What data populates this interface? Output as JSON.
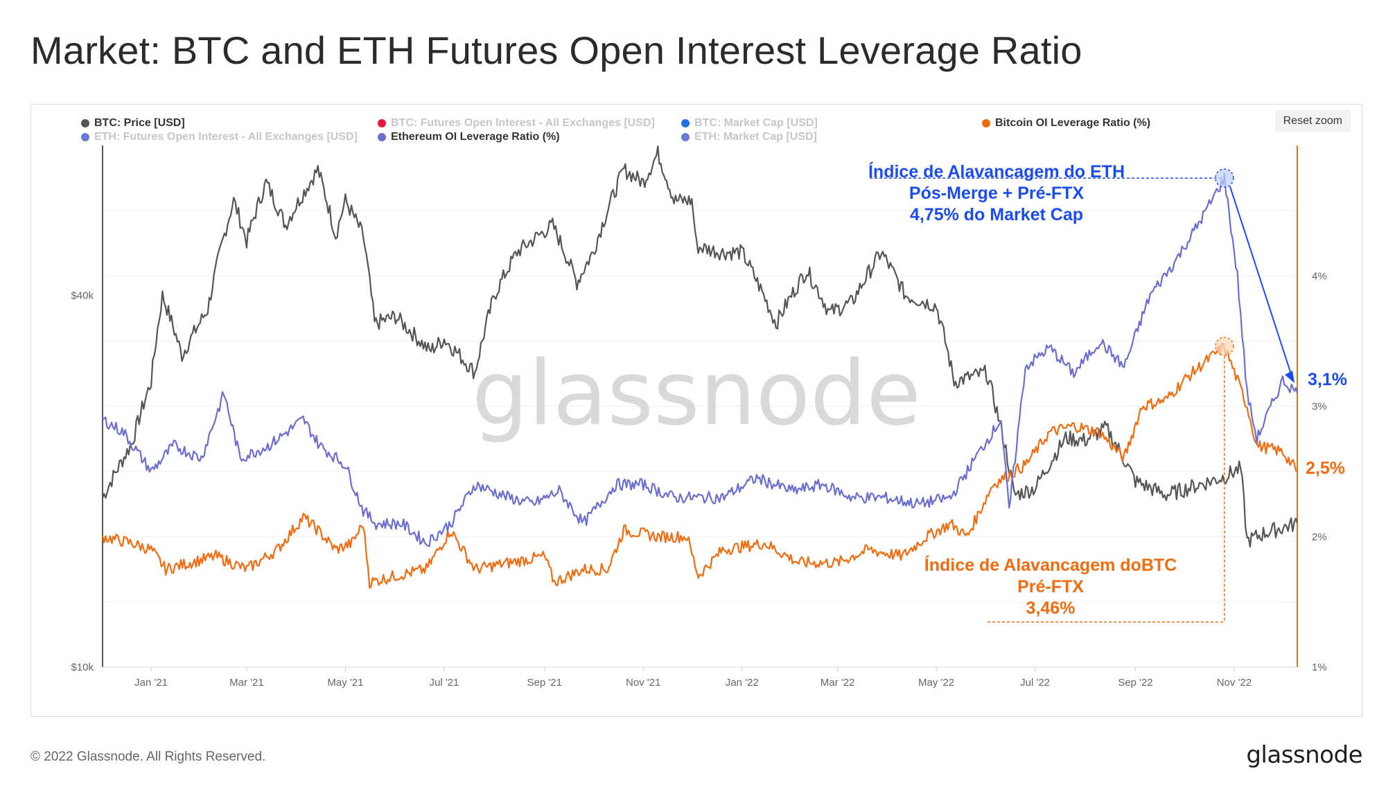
{
  "page": {
    "title": "Market: BTC and ETH Futures Open Interest Leverage Ratio",
    "footer": "© 2022 Glassnode. All Rights Reserved.",
    "logo": "glassnode",
    "watermark": "glassnode",
    "reset_zoom": "Reset zoom"
  },
  "legend": [
    {
      "label": "BTC: Price [USD]",
      "color": "#555555",
      "active": true
    },
    {
      "label": "BTC: Futures Open Interest - All Exchanges [USD]",
      "color": "#e8173c",
      "active": false
    },
    {
      "label": "BTC: Market Cap [USD]",
      "color": "#1f6fe5",
      "active": false
    },
    {
      "label": "Bitcoin OI Leverage Ratio (%)",
      "color": "#f26b0f",
      "active": true
    },
    {
      "label": "ETH: Futures Open Interest - All Exchanges [USD]",
      "color": "#6a78d8",
      "active": false
    },
    {
      "label": "Ethereum OI Leverage Ratio (%)",
      "color": "#6a6ed2",
      "active": true
    },
    {
      "label": "ETH: Market Cap [USD]",
      "color": "#6a78d8",
      "active": false
    }
  ],
  "annotations": {
    "eth_line1": "Índice de Alavancagem do ETH",
    "eth_line2": "Pós-Merge + Pré-FTX",
    "eth_line3": "4,75% do Market Cap",
    "eth_current": "3,1%",
    "btc_line1": "Índice de Alavancagem doBTC",
    "btc_line2": "Pré-FTX",
    "btc_line3": "3,46%",
    "btc_current": "2,5%"
  },
  "chart_data": {
    "type": "line",
    "x_ticks": [
      "Jan '21",
      "Mar '21",
      "May '21",
      "Jul '21",
      "Sep '21",
      "Nov '21",
      "Jan '22",
      "Mar '22",
      "May '22",
      "Jul '22",
      "Sep '22",
      "Nov '22"
    ],
    "y_left": {
      "ticks": [
        "$10k",
        "$40k"
      ],
      "scale": "log"
    },
    "y_right": {
      "ticks": [
        "1%",
        "2%",
        "3%",
        "4%"
      ]
    },
    "grid": true,
    "series": [
      {
        "name": "BTC: Price [USD]",
        "axis": "left",
        "color": "#555555",
        "x": [
          "2020-12-02",
          "2020-12-20",
          "2021-01-01",
          "2021-01-08",
          "2021-01-20",
          "2021-02-05",
          "2021-02-21",
          "2021-03-01",
          "2021-03-13",
          "2021-03-25",
          "2021-04-14",
          "2021-04-25",
          "2021-05-01",
          "2021-05-12",
          "2021-05-19",
          "2021-06-01",
          "2021-06-22",
          "2021-07-01",
          "2021-07-20",
          "2021-08-01",
          "2021-08-15",
          "2021-09-06",
          "2021-09-21",
          "2021-10-01",
          "2021-10-20",
          "2021-11-01",
          "2021-11-10",
          "2021-11-20",
          "2021-12-01",
          "2021-12-04",
          "2021-12-20",
          "2022-01-01",
          "2022-01-22",
          "2022-02-10",
          "2022-02-24",
          "2022-03-10",
          "2022-03-28",
          "2022-04-12",
          "2022-05-01",
          "2022-05-12",
          "2022-06-01",
          "2022-06-13",
          "2022-06-18",
          "2022-07-01",
          "2022-07-20",
          "2022-08-01",
          "2022-08-14",
          "2022-09-01",
          "2022-09-20",
          "2022-10-01",
          "2022-10-25",
          "2022-11-05",
          "2022-11-09",
          "2022-11-20",
          "2022-12-10"
        ],
        "values": [
          18800,
          23000,
          29000,
          40000,
          32000,
          38000,
          57000,
          49000,
          61000,
          52000,
          64000,
          50000,
          57000,
          50000,
          36000,
          37000,
          32500,
          34000,
          30000,
          40000,
          47000,
          52000,
          42000,
          47000,
          64000,
          61000,
          68000,
          57000,
          57000,
          48000,
          47000,
          47000,
          36000,
          44000,
          37500,
          39000,
          47000,
          40000,
          38500,
          29000,
          30000,
          22500,
          19000,
          19500,
          23500,
          23300,
          24400,
          20000,
          19000,
          19400,
          20300,
          21000,
          16000,
          16500,
          17100
        ]
      },
      {
        "name": "Bitcoin OI Leverage Ratio (%)",
        "axis": "right",
        "color": "#f26b0f",
        "x": [
          "2020-12-02",
          "2020-12-20",
          "2021-01-01",
          "2021-01-10",
          "2021-01-25",
          "2021-02-10",
          "2021-03-01",
          "2021-03-20",
          "2021-04-05",
          "2021-04-14",
          "2021-04-25",
          "2021-05-05",
          "2021-05-12",
          "2021-05-16",
          "2021-06-01",
          "2021-06-20",
          "2021-07-05",
          "2021-07-20",
          "2021-08-10",
          "2021-09-01",
          "2021-09-07",
          "2021-09-25",
          "2021-10-10",
          "2021-10-20",
          "2021-11-10",
          "2021-11-28",
          "2021-12-05",
          "2021-12-20",
          "2022-01-15",
          "2022-02-05",
          "2022-03-01",
          "2022-03-20",
          "2022-04-10",
          "2022-04-25",
          "2022-05-10",
          "2022-05-20",
          "2022-06-05",
          "2022-06-25",
          "2022-07-10",
          "2022-07-25",
          "2022-08-10",
          "2022-08-25",
          "2022-09-05",
          "2022-09-20",
          "2022-10-01",
          "2022-10-15",
          "2022-10-26",
          "2022-11-03",
          "2022-11-09",
          "2022-11-15",
          "2022-12-01",
          "2022-12-10"
        ],
        "values": [
          2.0,
          1.95,
          1.9,
          1.75,
          1.8,
          1.85,
          1.75,
          1.9,
          2.15,
          2.05,
          1.9,
          1.95,
          2.1,
          1.65,
          1.7,
          1.75,
          2.05,
          1.75,
          1.8,
          1.85,
          1.65,
          1.75,
          1.75,
          2.05,
          2.0,
          2.0,
          1.7,
          1.9,
          1.95,
          1.8,
          1.8,
          1.9,
          1.85,
          2.0,
          2.1,
          2.0,
          2.4,
          2.55,
          2.8,
          2.85,
          2.8,
          2.6,
          3.0,
          3.05,
          3.2,
          3.35,
          3.46,
          3.2,
          3.0,
          2.7,
          2.65,
          2.5
        ]
      },
      {
        "name": "Ethereum OI Leverage Ratio (%)",
        "axis": "right",
        "color": "#6a6ed2",
        "x": [
          "2020-12-02",
          "2020-12-15",
          "2021-01-01",
          "2021-01-15",
          "2021-02-01",
          "2021-02-15",
          "2021-02-25",
          "2021-03-15",
          "2021-04-05",
          "2021-04-15",
          "2021-05-01",
          "2021-05-12",
          "2021-05-20",
          "2021-06-05",
          "2021-06-20",
          "2021-07-05",
          "2021-07-20",
          "2021-08-10",
          "2021-08-25",
          "2021-09-10",
          "2021-09-25",
          "2021-10-15",
          "2021-11-01",
          "2021-11-20",
          "2021-12-05",
          "2021-12-20",
          "2022-01-10",
          "2022-02-01",
          "2022-02-20",
          "2022-03-10",
          "2022-03-30",
          "2022-04-20",
          "2022-05-10",
          "2022-05-25",
          "2022-06-10",
          "2022-06-15",
          "2022-06-25",
          "2022-07-10",
          "2022-07-25",
          "2022-08-10",
          "2022-08-25",
          "2022-09-10",
          "2022-09-25",
          "2022-10-10",
          "2022-10-26",
          "2022-11-03",
          "2022-11-09",
          "2022-11-15",
          "2022-12-01",
          "2022-12-10"
        ],
        "values": [
          2.9,
          2.8,
          2.5,
          2.7,
          2.6,
          3.1,
          2.6,
          2.7,
          2.9,
          2.7,
          2.55,
          2.2,
          2.1,
          2.1,
          1.95,
          2.1,
          2.4,
          2.3,
          2.25,
          2.35,
          2.1,
          2.4,
          2.4,
          2.3,
          2.3,
          2.3,
          2.45,
          2.35,
          2.4,
          2.3,
          2.3,
          2.25,
          2.3,
          2.6,
          2.9,
          2.2,
          3.3,
          3.45,
          3.25,
          3.5,
          3.3,
          3.85,
          4.1,
          4.4,
          4.75,
          4.0,
          3.1,
          2.75,
          3.2,
          3.1
        ]
      }
    ],
    "highlights": [
      {
        "series": "Ethereum OI Leverage Ratio (%)",
        "x": "2022-10-26",
        "y": 4.75
      },
      {
        "series": "Bitcoin OI Leverage Ratio (%)",
        "x": "2022-10-26",
        "y": 3.46
      }
    ]
  }
}
